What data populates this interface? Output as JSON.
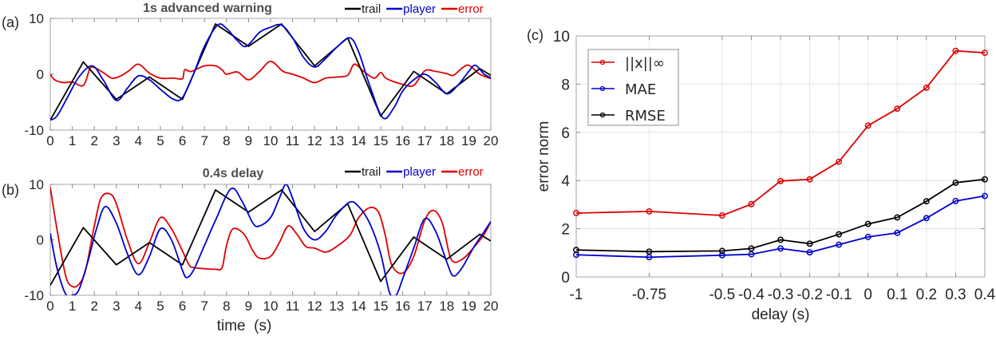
{
  "chart_data": [
    {
      "id": "a",
      "type": "line",
      "panel_label": "(a)",
      "title": "1s advanced warning",
      "xlabel": "",
      "ylabel": "",
      "xlim": [
        0,
        20
      ],
      "ylim": [
        -10,
        10
      ],
      "xticks": [
        "0",
        "1",
        "2",
        "3",
        "4",
        "5",
        "6",
        "7",
        "8",
        "9",
        "10",
        "11",
        "12",
        "13",
        "14",
        "15",
        "16",
        "17",
        "18",
        "19",
        "20"
      ],
      "yticks": [
        "-10",
        "0",
        "10"
      ],
      "legend": [
        "trail",
        "player",
        "error"
      ],
      "legend_position": "top-right-outside",
      "grid": false,
      "series": [
        {
          "name": "trail",
          "color": "#000000",
          "x": [
            0,
            1.5,
            3,
            4.5,
            6,
            7.5,
            9,
            10.5,
            12,
            13.5,
            15,
            16.5,
            18,
            19.5,
            20
          ],
          "y": [
            -8.2,
            2.2,
            -4.5,
            -0.5,
            -4.5,
            9,
            5,
            9,
            1.5,
            6.5,
            -7.5,
            0.5,
            -3.5,
            1,
            -0.2
          ]
        },
        {
          "name": "player",
          "color": "#0000cc",
          "x": [
            0,
            0.3,
            0.8,
            1.3,
            1.9,
            2.4,
            3,
            3.5,
            4,
            4.5,
            5,
            5.6,
            6,
            6.5,
            7,
            7.6,
            8,
            8.5,
            8.9,
            9.5,
            10,
            10.5,
            11,
            11.5,
            12,
            12.5,
            13,
            13.6,
            14,
            14.5,
            15.1,
            15.6,
            16,
            16.5,
            17,
            17.5,
            18,
            18.5,
            19,
            19.3,
            19.7,
            20
          ],
          "y": [
            -8.2,
            -7.5,
            -4,
            -0.5,
            1.5,
            -1,
            -4.7,
            -2.5,
            -0.3,
            -1,
            -2.7,
            -4.5,
            -4.2,
            0,
            5,
            8.8,
            8.2,
            6,
            5,
            7.5,
            8.4,
            8.8,
            6.5,
            3,
            1.3,
            2.8,
            4.8,
            6.5,
            4,
            -2,
            -7.8,
            -6,
            -3,
            -1,
            0,
            -1.5,
            -3.5,
            -2,
            0.5,
            1.6,
            0,
            -0.6
          ]
        },
        {
          "name": "error",
          "color": "#dd0000",
          "x": [
            0,
            0.2,
            0.6,
            1,
            1.5,
            1.8,
            2,
            2.4,
            2.8,
            3.2,
            3.6,
            4,
            4.5,
            5,
            5.6,
            6,
            6.1,
            6.4,
            7,
            7.5,
            7.8,
            8,
            8.5,
            9,
            9.5,
            10,
            10.5,
            10.7,
            11,
            11.5,
            12,
            12.5,
            13,
            13.5,
            13.8,
            14.2,
            14.7,
            15,
            15.2,
            15.5,
            16,
            16.5,
            17,
            17.5,
            18,
            18.3,
            18.7,
            19,
            19.5,
            20
          ],
          "y": [
            0,
            -1,
            -1.5,
            -1.4,
            -2,
            1,
            1.2,
            0.3,
            -0.7,
            -0.3,
            0.7,
            1.8,
            0.2,
            -0.7,
            -0.7,
            -0.8,
            0.8,
            0.5,
            1.5,
            1.5,
            0.8,
            0,
            0.4,
            -1,
            0.5,
            2.3,
            0.7,
            0.3,
            0,
            -0.7,
            -1.5,
            -0.7,
            -0.5,
            -0.2,
            1.8,
            0.6,
            -0.7,
            0.3,
            -0.6,
            -1.2,
            -1.8,
            -2,
            0.6,
            0.5,
            0.1,
            -0.2,
            1.1,
            1.6,
            0,
            -0.8
          ]
        }
      ]
    },
    {
      "id": "b",
      "type": "line",
      "panel_label": "(b)",
      "title": "0.4s delay",
      "xlabel": "time  (s)",
      "ylabel": "",
      "xlim": [
        0,
        20
      ],
      "ylim": [
        -10,
        10
      ],
      "xticks": [
        "0",
        "1",
        "2",
        "3",
        "4",
        "5",
        "6",
        "7",
        "8",
        "9",
        "10",
        "11",
        "12",
        "13",
        "14",
        "15",
        "16",
        "17",
        "18",
        "19",
        "20"
      ],
      "yticks": [
        "-10",
        "0",
        "10"
      ],
      "legend": [
        "trail",
        "player",
        "error"
      ],
      "legend_position": "top-right-outside",
      "grid": false,
      "series": [
        {
          "name": "trail",
          "color": "#000000",
          "x": [
            0,
            1.5,
            3,
            4.5,
            6,
            7.5,
            9,
            10.5,
            12,
            13.5,
            15,
            16.5,
            18,
            19.5,
            20
          ],
          "y": [
            -8.2,
            2.2,
            -4.5,
            -0.5,
            -4.5,
            9,
            5,
            9,
            1.5,
            6.5,
            -7.5,
            0.5,
            -3.5,
            1,
            -0.2
          ]
        },
        {
          "name": "player",
          "color": "#0000cc",
          "x": [
            0,
            0.3,
            0.7,
            1,
            1.3,
            1.7,
            2.1,
            2.5,
            3,
            3.5,
            4,
            4.5,
            5,
            5.5,
            6,
            6.2,
            6.5,
            7,
            7.5,
            8.2,
            8.7,
            9.2,
            9.5,
            10,
            10.4,
            10.7,
            11,
            11.5,
            12,
            12.5,
            13,
            13.6,
            14,
            14.5,
            15,
            15.4,
            15.7,
            16,
            16.5,
            17,
            17.5,
            18,
            18.3,
            18.7,
            19.2,
            19.7,
            20
          ],
          "y": [
            1.2,
            -5,
            -9.8,
            -10,
            -9,
            -4,
            2,
            6,
            3,
            -2.5,
            -6.3,
            -3,
            2,
            0,
            -5.5,
            -6.8,
            -5.5,
            -1,
            3.5,
            9.2,
            7,
            3,
            2.5,
            4,
            7.5,
            10,
            7.5,
            2,
            0,
            1.5,
            4.5,
            6.8,
            6,
            3,
            -2.5,
            -9.5,
            -10,
            -7,
            -1.5,
            3.8,
            1.5,
            -4,
            -6.5,
            -5,
            -1.5,
            1.5,
            3.3
          ]
        },
        {
          "name": "error",
          "color": "#dd0000",
          "x": [
            0,
            0.3,
            0.7,
            1,
            1.3,
            1.6,
            2,
            2.3,
            2.7,
            3,
            3.5,
            4,
            4.5,
            5,
            5.5,
            6,
            6.3,
            6.5,
            7,
            7.5,
            7.8,
            8,
            8.3,
            8.8,
            9.2,
            9.5,
            10,
            10.4,
            10.8,
            11.2,
            11.6,
            12,
            12.5,
            13,
            13.6,
            14,
            14.5,
            14.9,
            15.2,
            15.5,
            16,
            16.5,
            17,
            17.4,
            17.8,
            18.2,
            18.7,
            19.2,
            19.7,
            20
          ],
          "y": [
            9.5,
            2,
            -6.5,
            -8.4,
            -8,
            -5.5,
            2.5,
            7.5,
            8.3,
            6.5,
            0,
            -4.3,
            -0.5,
            4,
            2,
            -2,
            -4.5,
            -5,
            -5.2,
            -5.3,
            -5,
            -1,
            2,
            1,
            -2,
            -3.3,
            -3,
            -0.5,
            2.5,
            1,
            -1.2,
            -1.5,
            -2.2,
            -1.2,
            0.8,
            4,
            5.8,
            5,
            1,
            -4.5,
            -6,
            -3,
            3.5,
            5.3,
            3,
            -3.5,
            -3.5,
            -1.5,
            1,
            3.3
          ]
        }
      ]
    },
    {
      "id": "c",
      "type": "line",
      "panel_label": "(c)",
      "title": "",
      "xlabel": "delay (s)",
      "ylabel": "error norm",
      "xlim": [
        -1,
        0.4
      ],
      "ylim": [
        0,
        10
      ],
      "xticks": [
        "-1",
        "-0.75",
        "-0.5",
        "-0.4",
        "-0.3",
        "-0.2",
        "-0.1",
        "0",
        "0.1",
        "0.2",
        "0.3",
        "0.4"
      ],
      "xtick_values": [
        -1,
        -0.75,
        -0.5,
        -0.4,
        -0.3,
        -0.2,
        -0.1,
        0,
        0.1,
        0.2,
        0.3,
        0.4
      ],
      "yticks": [
        "0",
        "2",
        "4",
        "6",
        "8",
        "10"
      ],
      "ytick_values": [
        0,
        2,
        4,
        6,
        8,
        10
      ],
      "grid": true,
      "legend_position": "top-left",
      "x": [
        -1,
        -0.75,
        -0.5,
        -0.4,
        -0.3,
        -0.2,
        -0.1,
        0,
        0.1,
        0.2,
        0.3,
        0.4
      ],
      "series": [
        {
          "name": "||x||∞",
          "color": "#dd0000",
          "values": [
            2.65,
            2.72,
            2.55,
            3.02,
            3.98,
            4.05,
            4.78,
            6.28,
            6.98,
            7.85,
            9.38,
            9.3
          ]
        },
        {
          "name": "MAE",
          "color": "#0000cc",
          "values": [
            0.92,
            0.82,
            0.9,
            0.94,
            1.18,
            1.02,
            1.34,
            1.66,
            1.83,
            2.44,
            3.15,
            3.36
          ]
        },
        {
          "name": "RMSE",
          "color": "#000000",
          "values": [
            1.12,
            1.05,
            1.08,
            1.18,
            1.54,
            1.38,
            1.77,
            2.2,
            2.47,
            3.14,
            3.91,
            4.05
          ]
        }
      ]
    }
  ]
}
